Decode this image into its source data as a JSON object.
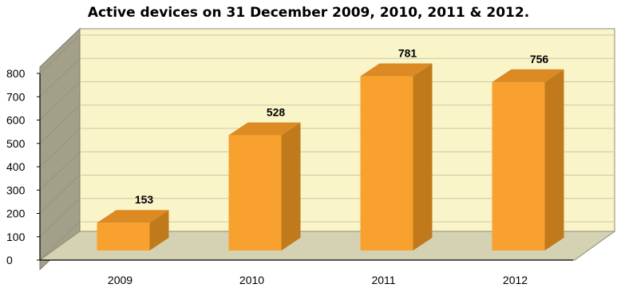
{
  "chart_data": {
    "type": "bar",
    "title": "Active devices on 31 December 2009, 2010, 2011 & 2012.",
    "categories": [
      "2009",
      "2010",
      "2011",
      "2012"
    ],
    "values": [
      153,
      528,
      781,
      756
    ],
    "data_labels": [
      "153",
      "528",
      "781",
      "756"
    ],
    "y_ticks": [
      0,
      100,
      200,
      300,
      400,
      500,
      600,
      700,
      800
    ],
    "ylim": [
      0,
      800
    ],
    "xlabel": "",
    "ylabel": "",
    "grid": true,
    "style": "3d",
    "colors": {
      "bar_front": "#F9A12E",
      "bar_side": "#C07A1C",
      "bar_top": "#DB8A24",
      "wall": "#FAF5C9",
      "side_wall": "#A3A08A",
      "floor": "#D4D2B2"
    }
  }
}
